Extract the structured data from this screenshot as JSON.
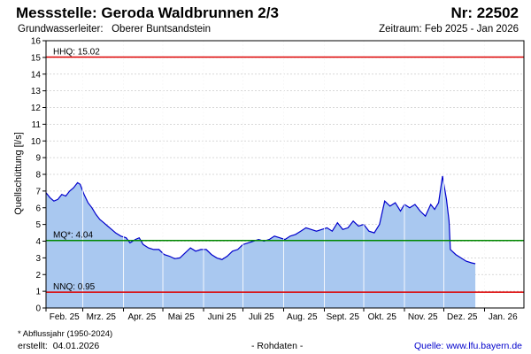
{
  "header": {
    "title": "Messstelle: Geroda Waldbrunnen 2/3",
    "number": "Nr: 22502",
    "aquifer_label": "Grundwasserleiter:",
    "aquifer": "Oberer Buntsandstein",
    "period": "Zeitraum: Feb 2025 - Jan 2026"
  },
  "footer": {
    "footnote": "* Abflussjahr (1950-2024)",
    "created_label": "erstellt:",
    "created_date": "04.01.2026",
    "data_type": "- Rohdaten -",
    "source": "Quelle: www.lfu.bayern.de"
  },
  "colors": {
    "fill": "#a9c8f0",
    "line": "#0000cc",
    "hhq": "#dd0000",
    "mq": "#008800",
    "nnq": "#dd0000",
    "grid": "#cccccc"
  },
  "chart_data": {
    "type": "area",
    "ylabel": "Quellschüttung [l/s]",
    "xlabel": "",
    "ylim": [
      0,
      16
    ],
    "yticks": [
      0,
      1,
      2,
      3,
      4,
      5,
      6,
      7,
      8,
      9,
      10,
      11,
      12,
      13,
      14,
      15,
      16
    ],
    "xlim": [
      "2025-02-01",
      "2026-01-31"
    ],
    "grid": true,
    "x_ticks": [
      {
        "label": "Feb. 25",
        "date": "2025-02-15"
      },
      {
        "label": "Mrz. 25",
        "date": "2025-03-15"
      },
      {
        "label": "Apr. 25",
        "date": "2025-04-15"
      },
      {
        "label": "Mai 25",
        "date": "2025-05-15"
      },
      {
        "label": "Juni 25",
        "date": "2025-06-15"
      },
      {
        "label": "Juli 25",
        "date": "2025-07-15"
      },
      {
        "label": "Aug. 25",
        "date": "2025-08-15"
      },
      {
        "label": "Sept. 25",
        "date": "2025-09-15"
      },
      {
        "label": "Okt. 25",
        "date": "2025-10-15"
      },
      {
        "label": "Nov. 25",
        "date": "2025-11-15"
      },
      {
        "label": "Dez. 25",
        "date": "2025-12-15"
      },
      {
        "label": "Jan. 26",
        "date": "2026-01-15"
      }
    ],
    "reference_lines": [
      {
        "label": "HHQ: 15.02",
        "value": 15.02,
        "color": "#dd0000"
      },
      {
        "label": "MQ*: 4.04",
        "value": 4.04,
        "color": "#008800"
      },
      {
        "label": "NNQ: 0.95",
        "value": 0.95,
        "color": "#dd0000"
      }
    ],
    "series": [
      {
        "points": [
          [
            "2025-02-01",
            6.9
          ],
          [
            "2025-02-04",
            6.6
          ],
          [
            "2025-02-07",
            6.4
          ],
          [
            "2025-02-10",
            6.5
          ],
          [
            "2025-02-13",
            6.8
          ],
          [
            "2025-02-16",
            6.7
          ],
          [
            "2025-02-19",
            7.0
          ],
          [
            "2025-02-22",
            7.2
          ],
          [
            "2025-02-25",
            7.5
          ],
          [
            "2025-02-27",
            7.4
          ],
          [
            "2025-03-02",
            6.8
          ],
          [
            "2025-03-05",
            6.3
          ],
          [
            "2025-03-08",
            6.0
          ],
          [
            "2025-03-11",
            5.6
          ],
          [
            "2025-03-14",
            5.3
          ],
          [
            "2025-03-17",
            5.1
          ],
          [
            "2025-03-20",
            4.9
          ],
          [
            "2025-03-23",
            4.7
          ],
          [
            "2025-03-26",
            4.5
          ],
          [
            "2025-03-30",
            4.3
          ],
          [
            "2025-04-03",
            4.2
          ],
          [
            "2025-04-06",
            3.9
          ],
          [
            "2025-04-10",
            4.1
          ],
          [
            "2025-04-13",
            4.2
          ],
          [
            "2025-04-16",
            3.8
          ],
          [
            "2025-04-20",
            3.6
          ],
          [
            "2025-04-24",
            3.5
          ],
          [
            "2025-04-28",
            3.5
          ],
          [
            "2025-05-02",
            3.2
          ],
          [
            "2025-05-06",
            3.1
          ],
          [
            "2025-05-10",
            2.95
          ],
          [
            "2025-05-14",
            3.0
          ],
          [
            "2025-05-18",
            3.3
          ],
          [
            "2025-05-22",
            3.6
          ],
          [
            "2025-05-26",
            3.4
          ],
          [
            "2025-05-30",
            3.5
          ],
          [
            "2025-06-03",
            3.5
          ],
          [
            "2025-06-07",
            3.2
          ],
          [
            "2025-06-11",
            3.0
          ],
          [
            "2025-06-15",
            2.9
          ],
          [
            "2025-06-19",
            3.1
          ],
          [
            "2025-06-23",
            3.4
          ],
          [
            "2025-06-27",
            3.5
          ],
          [
            "2025-07-01",
            3.8
          ],
          [
            "2025-07-05",
            3.9
          ],
          [
            "2025-07-09",
            4.0
          ],
          [
            "2025-07-13",
            4.1
          ],
          [
            "2025-07-17",
            4.0
          ],
          [
            "2025-07-21",
            4.1
          ],
          [
            "2025-07-25",
            4.3
          ],
          [
            "2025-07-29",
            4.2
          ],
          [
            "2025-08-02",
            4.1
          ],
          [
            "2025-08-06",
            4.3
          ],
          [
            "2025-08-10",
            4.4
          ],
          [
            "2025-08-14",
            4.6
          ],
          [
            "2025-08-18",
            4.8
          ],
          [
            "2025-08-22",
            4.7
          ],
          [
            "2025-08-26",
            4.6
          ],
          [
            "2025-08-30",
            4.7
          ],
          [
            "2025-09-03",
            4.8
          ],
          [
            "2025-09-07",
            4.6
          ],
          [
            "2025-09-11",
            5.1
          ],
          [
            "2025-09-15",
            4.7
          ],
          [
            "2025-09-19",
            4.8
          ],
          [
            "2025-09-23",
            5.2
          ],
          [
            "2025-09-27",
            4.9
          ],
          [
            "2025-10-01",
            5.0
          ],
          [
            "2025-10-05",
            4.6
          ],
          [
            "2025-10-09",
            4.5
          ],
          [
            "2025-10-13",
            5.0
          ],
          [
            "2025-10-17",
            6.4
          ],
          [
            "2025-10-21",
            6.1
          ],
          [
            "2025-10-25",
            6.3
          ],
          [
            "2025-10-29",
            5.8
          ],
          [
            "2025-11-01",
            6.2
          ],
          [
            "2025-11-05",
            6.0
          ],
          [
            "2025-11-09",
            6.2
          ],
          [
            "2025-11-13",
            5.8
          ],
          [
            "2025-11-17",
            5.5
          ],
          [
            "2025-11-21",
            6.2
          ],
          [
            "2025-11-24",
            5.9
          ],
          [
            "2025-11-27",
            6.3
          ],
          [
            "2025-11-30",
            7.9
          ],
          [
            "2025-12-03",
            6.5
          ],
          [
            "2025-12-05",
            5.2
          ],
          [
            "2025-12-06",
            3.5
          ],
          [
            "2025-12-10",
            3.2
          ],
          [
            "2025-12-14",
            3.0
          ],
          [
            "2025-12-18",
            2.8
          ],
          [
            "2025-12-22",
            2.7
          ],
          [
            "2025-12-25",
            2.65
          ]
        ]
      }
    ]
  }
}
